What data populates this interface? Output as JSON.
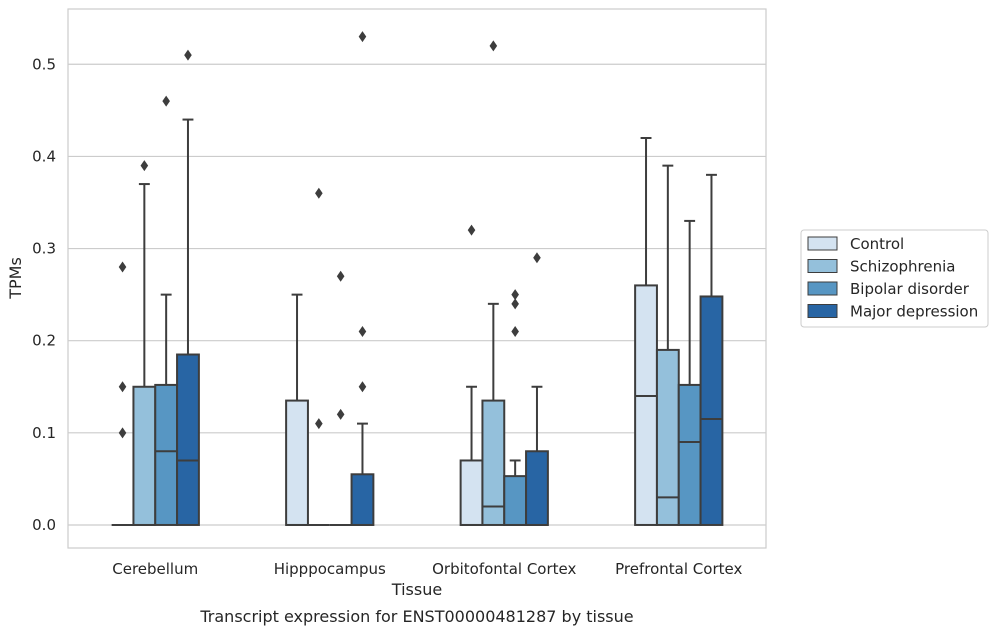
{
  "chart_data": {
    "type": "box",
    "xlabel": "Tissue",
    "ylabel": "TPMs",
    "caption": "Transcript expression for ENST00000481287 by tissue",
    "categories": [
      "Cerebellum",
      "Hipppocampus",
      "Orbitofontal Cortex",
      "Prefrontal Cortex"
    ],
    "ylim": [
      -0.025,
      0.56
    ],
    "yticks": [
      0.0,
      0.1,
      0.2,
      0.3,
      0.4,
      0.5
    ],
    "ytick_labels": [
      "0.0",
      "0.1",
      "0.2",
      "0.3",
      "0.4",
      "0.5"
    ],
    "grid": "horizontal",
    "legend_position": "right",
    "series": [
      {
        "name": "Control",
        "color": "#d4e3f1",
        "boxes": [
          {
            "q1": 0,
            "median": 0,
            "q3": 0,
            "whisker_low": 0,
            "whisker_high": 0,
            "outliers": [
              0.1,
              0.15,
              0.28
            ]
          },
          {
            "q1": 0,
            "median": 0,
            "q3": 0.135,
            "whisker_low": 0,
            "whisker_high": 0.25,
            "outliers": []
          },
          {
            "q1": 0,
            "median": 0,
            "q3": 0.07,
            "whisker_low": 0,
            "whisker_high": 0.15,
            "outliers": [
              0.32
            ]
          },
          {
            "q1": 0,
            "median": 0.14,
            "q3": 0.26,
            "whisker_low": 0,
            "whisker_high": 0.42,
            "outliers": []
          }
        ]
      },
      {
        "name": "Schizophrenia",
        "color": "#94c0db",
        "boxes": [
          {
            "q1": 0,
            "median": 0,
            "q3": 0.15,
            "whisker_low": 0,
            "whisker_high": 0.37,
            "outliers": [
              0.39
            ]
          },
          {
            "q1": 0,
            "median": 0,
            "q3": 0,
            "whisker_low": 0,
            "whisker_high": 0,
            "outliers": [
              0.11,
              0.36
            ]
          },
          {
            "q1": 0,
            "median": 0.02,
            "q3": 0.135,
            "whisker_low": 0,
            "whisker_high": 0.24,
            "outliers": [
              0.52
            ]
          },
          {
            "q1": 0,
            "median": 0.03,
            "q3": 0.19,
            "whisker_low": 0,
            "whisker_high": 0.39,
            "outliers": []
          }
        ]
      },
      {
        "name": "Bipolar disorder",
        "color": "#5796c3",
        "boxes": [
          {
            "q1": 0,
            "median": 0.08,
            "q3": 0.152,
            "whisker_low": 0,
            "whisker_high": 0.25,
            "outliers": [
              0.46
            ]
          },
          {
            "q1": 0,
            "median": 0,
            "q3": 0,
            "whisker_low": 0,
            "whisker_high": 0,
            "outliers": [
              0.12,
              0.27
            ]
          },
          {
            "q1": 0,
            "median": 0,
            "q3": 0.053,
            "whisker_low": 0,
            "whisker_high": 0.07,
            "outliers": [
              0.21,
              0.24,
              0.25
            ]
          },
          {
            "q1": 0,
            "median": 0.09,
            "q3": 0.152,
            "whisker_low": 0,
            "whisker_high": 0.33,
            "outliers": []
          }
        ]
      },
      {
        "name": "Major depression",
        "color": "#2865a4",
        "boxes": [
          {
            "q1": 0,
            "median": 0.07,
            "q3": 0.185,
            "whisker_low": 0,
            "whisker_high": 0.44,
            "outliers": [
              0.51
            ]
          },
          {
            "q1": 0,
            "median": 0,
            "q3": 0.055,
            "whisker_low": 0,
            "whisker_high": 0.11,
            "outliers": [
              0.15,
              0.21,
              0.53
            ]
          },
          {
            "q1": 0,
            "median": 0,
            "q3": 0.08,
            "whisker_low": 0,
            "whisker_high": 0.15,
            "outliers": [
              0.29
            ]
          },
          {
            "q1": 0,
            "median": 0.115,
            "q3": 0.248,
            "whisker_low": 0,
            "whisker_high": 0.38,
            "outliers": []
          }
        ]
      }
    ]
  }
}
